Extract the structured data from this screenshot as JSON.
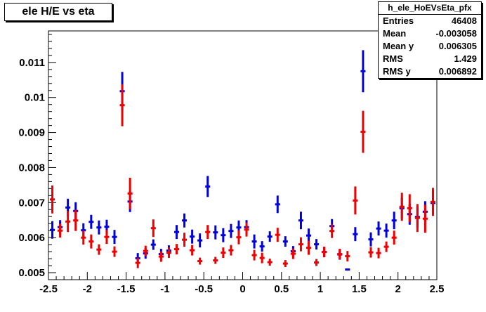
{
  "title": "ele H/E vs eta",
  "stats": {
    "name": "h_ele_HoEVsEta_pfx",
    "rows": [
      {
        "label": "Entries",
        "value": "46408"
      },
      {
        "label": "Mean",
        "value": "-0.003058"
      },
      {
        "label": "Mean y",
        "value": "0.006305"
      },
      {
        "label": "RMS",
        "value": "1.429"
      },
      {
        "label": "RMS y",
        "value": "0.006892"
      }
    ]
  },
  "chart_data": {
    "type": "scatter",
    "title": "ele H/E vs eta",
    "xlim": [
      -2.5,
      2.5
    ],
    "ylim": [
      0.0048,
      0.0119
    ],
    "x_ticks": [
      -2.5,
      -2,
      -1.5,
      -1,
      -0.5,
      0,
      0.5,
      1,
      1.5,
      2,
      2.5
    ],
    "x_tick_labels": [
      "-2.5",
      "-2",
      "-1.5",
      "-1",
      "-0.5",
      "0",
      "0.5",
      "1",
      "1.5",
      "2",
      "2.5"
    ],
    "y_ticks": [
      0.005,
      0.006,
      0.007,
      0.008,
      0.009,
      0.01,
      0.011
    ],
    "y_tick_labels": [
      "0.005",
      "0.006",
      "0.007",
      "0.008",
      "0.009",
      "0.01",
      "0.011"
    ],
    "bin_half_width": 0.05,
    "series": [
      {
        "color": "#0000dd",
        "points": [
          {
            "x": -2.45,
            "y": 0.00622,
            "err": 0.00025
          },
          {
            "x": -2.35,
            "y": 0.0063,
            "err": 0.0002
          },
          {
            "x": -2.25,
            "y": 0.00686,
            "err": 0.00025
          },
          {
            "x": -2.15,
            "y": 0.00676,
            "err": 0.00025
          },
          {
            "x": -2.05,
            "y": 0.00621,
            "err": 0.0002
          },
          {
            "x": -1.95,
            "y": 0.00645,
            "err": 0.0002
          },
          {
            "x": -1.85,
            "y": 0.00629,
            "err": 0.0002
          },
          {
            "x": -1.75,
            "y": 0.00631,
            "err": 0.0002
          },
          {
            "x": -1.65,
            "y": 0.00602,
            "err": 0.0002
          },
          {
            "x": -1.55,
            "y": 0.01018,
            "err": 0.00055
          },
          {
            "x": -1.45,
            "y": 0.00703,
            "err": 0.0003
          },
          {
            "x": -1.35,
            "y": 0.00541,
            "err": 0.00015
          },
          {
            "x": -1.25,
            "y": 0.00555,
            "err": 0.00015
          },
          {
            "x": -1.15,
            "y": 0.0058,
            "err": 0.00015
          },
          {
            "x": -1.05,
            "y": 0.00553,
            "err": 0.00015
          },
          {
            "x": -0.95,
            "y": 0.00563,
            "err": 0.00015
          },
          {
            "x": -0.85,
            "y": 0.00616,
            "err": 0.0002
          },
          {
            "x": -0.75,
            "y": 0.00649,
            "err": 0.0002
          },
          {
            "x": -0.65,
            "y": 0.00603,
            "err": 0.0002
          },
          {
            "x": -0.55,
            "y": 0.00592,
            "err": 0.0002
          },
          {
            "x": -0.45,
            "y": 0.00746,
            "err": 0.0003
          },
          {
            "x": -0.35,
            "y": 0.00615,
            "err": 0.0002
          },
          {
            "x": -0.25,
            "y": 0.00607,
            "err": 0.0002
          },
          {
            "x": -0.15,
            "y": 0.00619,
            "err": 0.0002
          },
          {
            "x": -0.05,
            "y": 0.00629,
            "err": 0.0002
          },
          {
            "x": 0.05,
            "y": 0.0063,
            "err": 0.0002
          },
          {
            "x": 0.15,
            "y": 0.00589,
            "err": 0.0002
          },
          {
            "x": 0.25,
            "y": 0.00575,
            "err": 0.00015
          },
          {
            "x": 0.35,
            "y": 0.00603,
            "err": 0.00015
          },
          {
            "x": 0.45,
            "y": 0.00695,
            "err": 0.00025
          },
          {
            "x": 0.55,
            "y": 0.00589,
            "err": 0.00015
          },
          {
            "x": 0.65,
            "y": 0.00561,
            "err": 0.00015
          },
          {
            "x": 0.75,
            "y": 0.00649,
            "err": 0.00025
          },
          {
            "x": 0.85,
            "y": 0.00606,
            "err": 0.0002
          },
          {
            "x": 0.95,
            "y": 0.00581,
            "err": 0.00015
          },
          {
            "x": 1.05,
            "y": 0.00559,
            "err": 0.00015
          },
          {
            "x": 1.15,
            "y": 0.00633,
            "err": 0.0002
          },
          {
            "x": 1.25,
            "y": 0.00552,
            "err": 0.00015
          },
          {
            "x": 1.35,
            "y": 0.00509,
            "err": 3e-05
          },
          {
            "x": 1.45,
            "y": 0.0061,
            "err": 0.0002
          },
          {
            "x": 1.55,
            "y": 0.01075,
            "err": 0.0006
          },
          {
            "x": 1.65,
            "y": 0.00595,
            "err": 0.0002
          },
          {
            "x": 1.75,
            "y": 0.00626,
            "err": 0.0002
          },
          {
            "x": 1.85,
            "y": 0.0062,
            "err": 0.0002
          },
          {
            "x": 1.95,
            "y": 0.00649,
            "err": 0.00025
          },
          {
            "x": 2.05,
            "y": 0.00684,
            "err": 0.0003
          },
          {
            "x": 2.15,
            "y": 0.00667,
            "err": 0.0003
          },
          {
            "x": 2.25,
            "y": 0.00659,
            "err": 0.0003
          },
          {
            "x": 2.35,
            "y": 0.00674,
            "err": 0.0003
          },
          {
            "x": 2.45,
            "y": 0.00699,
            "err": 0.00035
          }
        ]
      },
      {
        "color": "#ee0000",
        "points": [
          {
            "x": -2.45,
            "y": 0.00709,
            "err": 0.0004
          },
          {
            "x": -2.35,
            "y": 0.0062,
            "err": 0.0002
          },
          {
            "x": -2.25,
            "y": 0.00646,
            "err": 0.0003
          },
          {
            "x": -2.15,
            "y": 0.00649,
            "err": 0.0003
          },
          {
            "x": -2.05,
            "y": 0.006,
            "err": 0.0002
          },
          {
            "x": -1.95,
            "y": 0.00589,
            "err": 0.0002
          },
          {
            "x": -1.85,
            "y": 0.00566,
            "err": 0.00015
          },
          {
            "x": -1.75,
            "y": 0.00602,
            "err": 0.0002
          },
          {
            "x": -1.65,
            "y": 0.0056,
            "err": 0.00015
          },
          {
            "x": -1.55,
            "y": 0.00978,
            "err": 0.0006
          },
          {
            "x": -1.45,
            "y": 0.00726,
            "err": 0.00045
          },
          {
            "x": -1.35,
            "y": 0.00528,
            "err": 0.00015
          },
          {
            "x": -1.25,
            "y": 0.00562,
            "err": 0.00015
          },
          {
            "x": -1.15,
            "y": 0.00627,
            "err": 0.00025
          },
          {
            "x": -1.05,
            "y": 0.00546,
            "err": 0.00015
          },
          {
            "x": -0.95,
            "y": 0.00557,
            "err": 0.00015
          },
          {
            "x": -0.85,
            "y": 0.00567,
            "err": 0.00015
          },
          {
            "x": -0.75,
            "y": 0.00594,
            "err": 0.0002
          },
          {
            "x": -0.65,
            "y": 0.00564,
            "err": 0.00015
          },
          {
            "x": -0.55,
            "y": 0.00533,
            "err": 0.0001
          },
          {
            "x": -0.45,
            "y": 0.00616,
            "err": 0.0002
          },
          {
            "x": -0.35,
            "y": 0.00535,
            "err": 0.0001
          },
          {
            "x": -0.25,
            "y": 0.00557,
            "err": 0.00015
          },
          {
            "x": -0.15,
            "y": 0.00564,
            "err": 0.00015
          },
          {
            "x": -0.05,
            "y": 0.00601,
            "err": 0.0002
          },
          {
            "x": 0.05,
            "y": 0.00623,
            "err": 0.0002
          },
          {
            "x": 0.15,
            "y": 0.0055,
            "err": 0.00015
          },
          {
            "x": 0.25,
            "y": 0.00542,
            "err": 0.00015
          },
          {
            "x": 0.35,
            "y": 0.0053,
            "err": 0.0001
          },
          {
            "x": 0.45,
            "y": 0.00608,
            "err": 0.0002
          },
          {
            "x": 0.55,
            "y": 0.00526,
            "err": 0.0001
          },
          {
            "x": 0.65,
            "y": 0.00554,
            "err": 0.00015
          },
          {
            "x": 0.75,
            "y": 0.00581,
            "err": 0.0002
          },
          {
            "x": 0.85,
            "y": 0.00571,
            "err": 0.0002
          },
          {
            "x": 0.95,
            "y": 0.00529,
            "err": 0.0001
          },
          {
            "x": 1.05,
            "y": 0.00559,
            "err": 0.00015
          },
          {
            "x": 1.15,
            "y": 0.00619,
            "err": 0.0002
          },
          {
            "x": 1.25,
            "y": 0.00553,
            "err": 0.00015
          },
          {
            "x": 1.35,
            "y": 0.00547,
            "err": 0.00015
          },
          {
            "x": 1.45,
            "y": 0.00706,
            "err": 0.0004
          },
          {
            "x": 1.55,
            "y": 0.00902,
            "err": 0.0006
          },
          {
            "x": 1.65,
            "y": 0.00558,
            "err": 0.00015
          },
          {
            "x": 1.75,
            "y": 0.00556,
            "err": 0.00015
          },
          {
            "x": 1.85,
            "y": 0.00574,
            "err": 0.00015
          },
          {
            "x": 1.95,
            "y": 0.006,
            "err": 0.0002
          },
          {
            "x": 2.05,
            "y": 0.00688,
            "err": 0.0004
          },
          {
            "x": 2.15,
            "y": 0.00684,
            "err": 0.0004
          },
          {
            "x": 2.25,
            "y": 0.00656,
            "err": 0.0004
          },
          {
            "x": 2.35,
            "y": 0.00654,
            "err": 0.0004
          },
          {
            "x": 2.45,
            "y": 0.00702,
            "err": 0.0004
          }
        ]
      }
    ]
  }
}
